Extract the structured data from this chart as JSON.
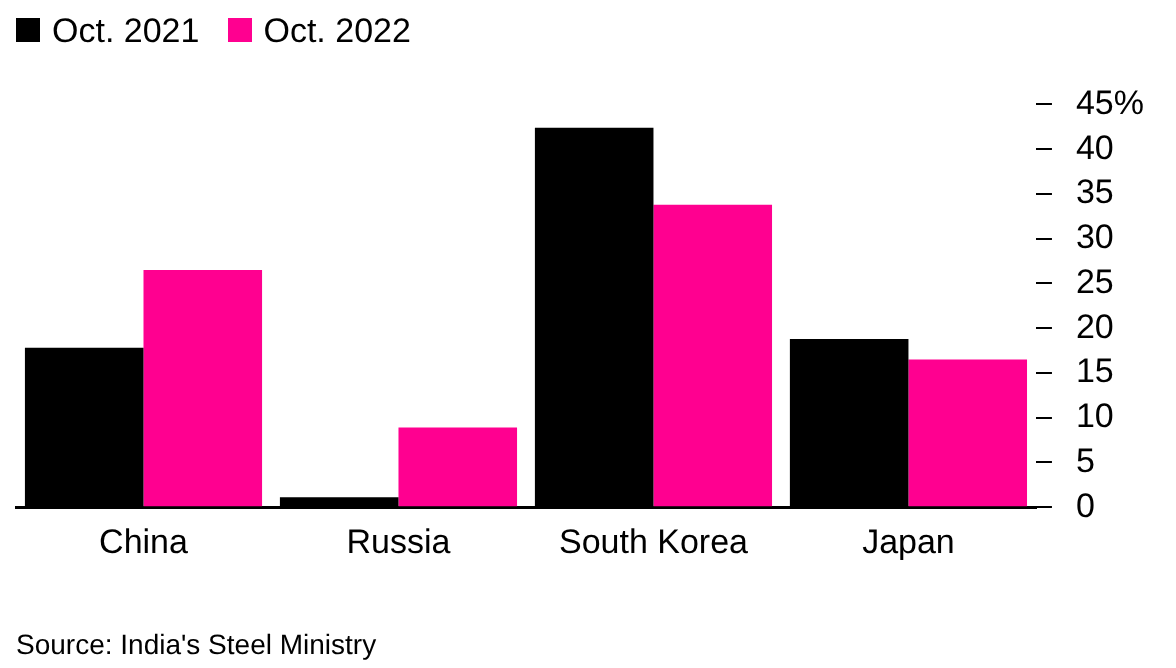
{
  "chart_data": {
    "type": "bar",
    "categories": [
      "China",
      "Russia",
      "South Korea",
      "Japan"
    ],
    "series": [
      {
        "name": "Oct. 2021",
        "color": "#000000",
        "values": [
          17.8,
          1.1,
          42.4,
          18.8
        ]
      },
      {
        "name": "Oct. 2022",
        "color": "#ff0090",
        "values": [
          26.5,
          8.9,
          33.8,
          16.5
        ]
      }
    ],
    "ylim": [
      0,
      45
    ],
    "yticks": [
      0,
      5,
      10,
      15,
      20,
      25,
      30,
      35,
      40,
      {
        "value": 45,
        "label": "45%"
      }
    ],
    "grid": false,
    "legend": "top left",
    "annotations": [
      "Source: India's Steel Ministry"
    ]
  }
}
